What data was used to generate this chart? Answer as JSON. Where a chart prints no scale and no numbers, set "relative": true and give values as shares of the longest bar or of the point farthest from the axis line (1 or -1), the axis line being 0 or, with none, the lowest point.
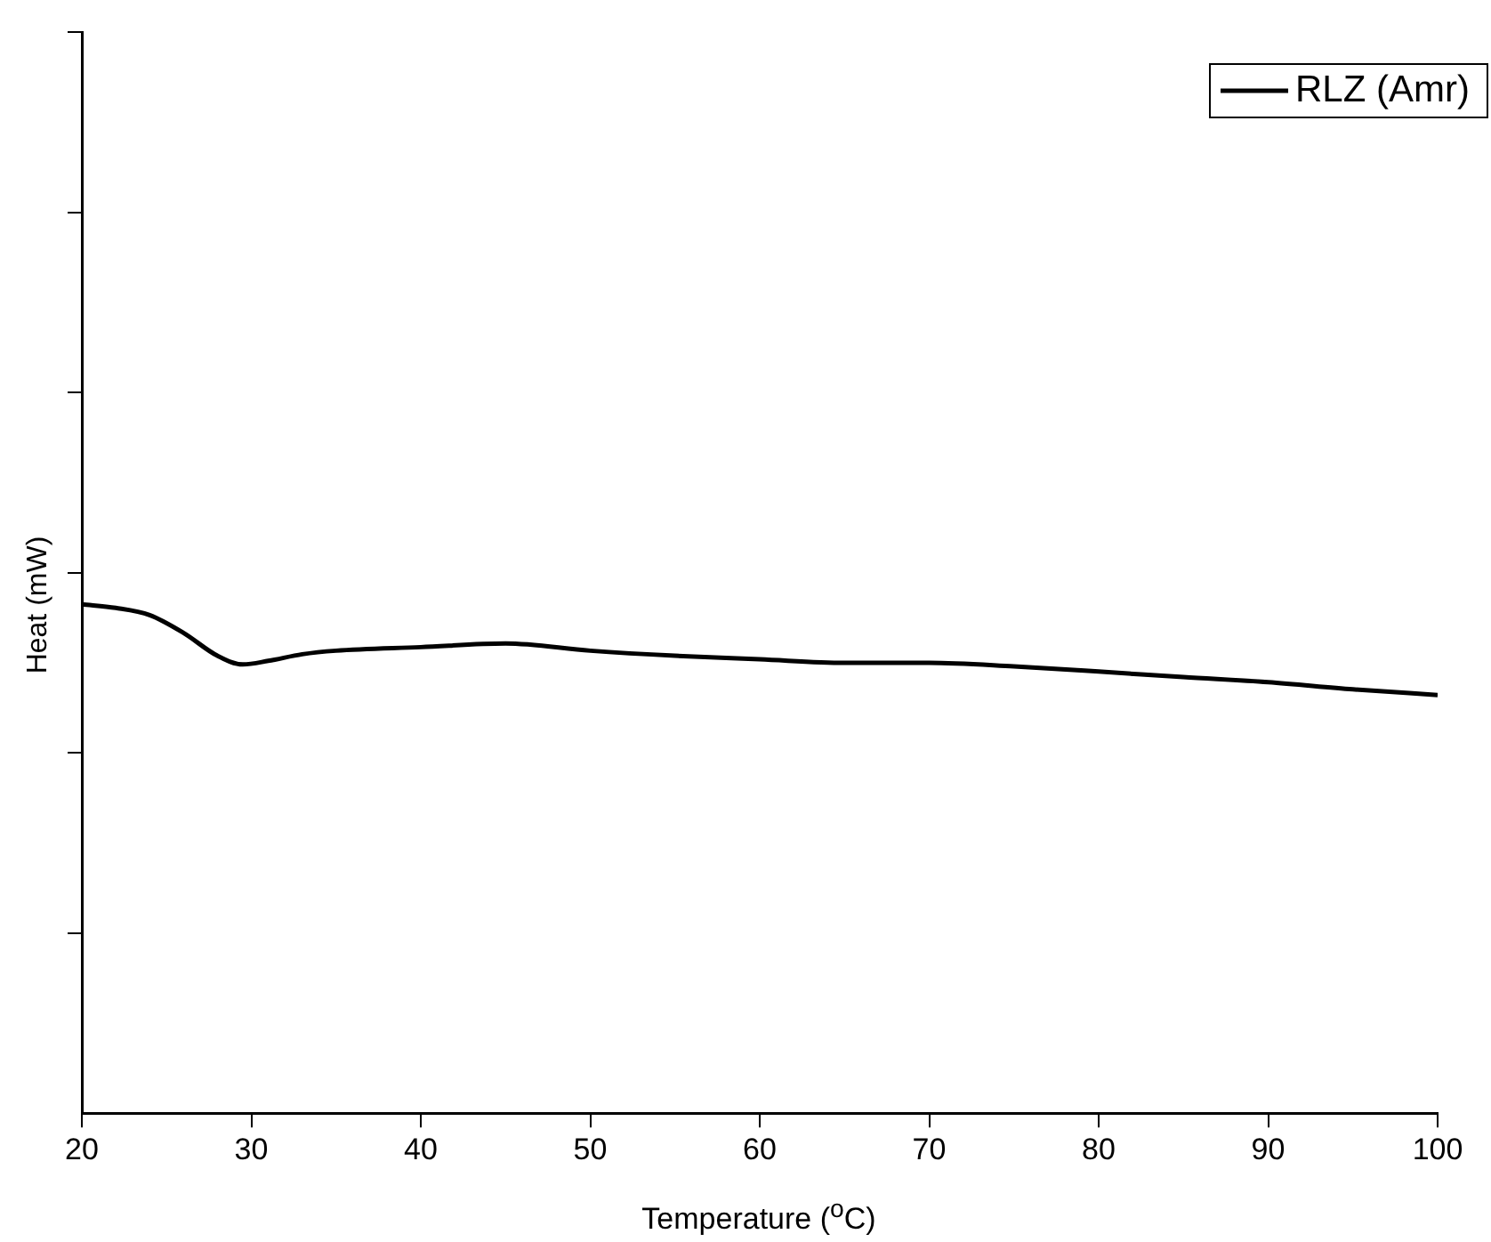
{
  "chart_data": {
    "type": "line",
    "xlabel": "Temperature ($^{o}$C)",
    "ylabel": "Heat (mW)",
    "relative": true,
    "legend": "top right",
    "grid": false,
    "marker": "none",
    "line_style": "solid",
    "xlim": [
      20,
      100
    ],
    "xticks": [
      20,
      30,
      40,
      50,
      60,
      70,
      80,
      90,
      100
    ],
    "x": [
      20,
      22,
      24,
      26,
      28,
      29.5,
      31,
      33,
      35,
      40,
      45,
      50,
      55,
      60,
      65,
      70,
      75,
      80,
      85,
      90,
      95,
      100
    ],
    "series": [
      {
        "name": "RLZ (Amr)",
        "color": "#000000",
        "values": [
          1,
          0.993,
          0.979,
          0.944,
          0.899,
          0.882,
          0.889,
          0.902,
          0.909,
          0.916,
          0.923,
          0.909,
          0.899,
          0.892,
          0.885,
          0.885,
          0.878,
          0.868,
          0.857,
          0.847,
          0.833,
          0.822
        ]
      }
    ]
  }
}
